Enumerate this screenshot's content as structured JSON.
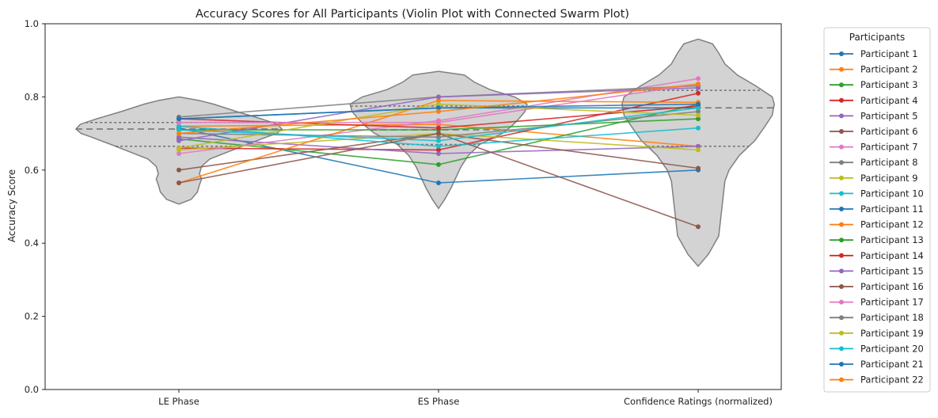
{
  "chart_data": {
    "type": "line",
    "title": "Accuracy Scores for All Participants (Violin Plot with Connected Swarm Plot)",
    "xlabel": "",
    "ylabel": "Accuracy Score",
    "categories": [
      "LE Phase",
      "ES Phase",
      "Confidence Ratings (normalized)"
    ],
    "ylim": [
      0,
      1.0
    ],
    "yticks": [
      "0.0",
      "0.2",
      "0.4",
      "0.6",
      "0.8",
      "1.0"
    ],
    "grid": false,
    "legend": {
      "title": "Participants",
      "placement": "outside-right"
    },
    "palette": [
      "#1f77b4",
      "#ff7f0e",
      "#2ca02c",
      "#d62728",
      "#9467bd",
      "#8c564b",
      "#e377c2",
      "#7f7f7f",
      "#bcbd22",
      "#17becf"
    ],
    "violin_color": "#d3d3d3",
    "violin_edge": "#808080",
    "violins": [
      {
        "category": "LE Phase",
        "profile": [
          [
            0.507,
            0.0
          ],
          [
            0.52,
            0.12
          ],
          [
            0.54,
            0.18
          ],
          [
            0.56,
            0.2
          ],
          [
            0.575,
            0.22
          ],
          [
            0.59,
            0.2
          ],
          [
            0.61,
            0.22
          ],
          [
            0.63,
            0.3
          ],
          [
            0.65,
            0.48
          ],
          [
            0.67,
            0.66
          ],
          [
            0.69,
            0.85
          ],
          [
            0.7,
            0.95
          ],
          [
            0.712,
            1.0
          ],
          [
            0.725,
            0.96
          ],
          [
            0.74,
            0.8
          ],
          [
            0.76,
            0.56
          ],
          [
            0.78,
            0.34
          ],
          [
            0.79,
            0.2
          ],
          [
            0.8,
            0.0
          ]
        ],
        "quartiles": [
          0.665,
          0.712,
          0.73
        ]
      },
      {
        "category": "ES Phase",
        "profile": [
          [
            0.495,
            0.0
          ],
          [
            0.52,
            0.06
          ],
          [
            0.55,
            0.12
          ],
          [
            0.58,
            0.17
          ],
          [
            0.61,
            0.22
          ],
          [
            0.64,
            0.29
          ],
          [
            0.67,
            0.4
          ],
          [
            0.7,
            0.62
          ],
          [
            0.72,
            0.71
          ],
          [
            0.74,
            0.78
          ],
          [
            0.76,
            0.84
          ],
          [
            0.78,
            0.86
          ],
          [
            0.8,
            0.74
          ],
          [
            0.82,
            0.5
          ],
          [
            0.84,
            0.35
          ],
          [
            0.86,
            0.25
          ],
          [
            0.87,
            0.0
          ]
        ],
        "quartiles": [
          0.67,
          0.71,
          0.775
        ]
      },
      {
        "category": "Confidence Ratings (normalized)",
        "profile": [
          [
            0.337,
            0.0
          ],
          [
            0.37,
            0.1
          ],
          [
            0.42,
            0.2
          ],
          [
            0.47,
            0.22
          ],
          [
            0.52,
            0.24
          ],
          [
            0.57,
            0.26
          ],
          [
            0.6,
            0.3
          ],
          [
            0.64,
            0.4
          ],
          [
            0.68,
            0.55
          ],
          [
            0.72,
            0.65
          ],
          [
            0.75,
            0.72
          ],
          [
            0.78,
            0.74
          ],
          [
            0.8,
            0.72
          ],
          [
            0.83,
            0.56
          ],
          [
            0.86,
            0.38
          ],
          [
            0.89,
            0.26
          ],
          [
            0.92,
            0.2
          ],
          [
            0.945,
            0.14
          ],
          [
            0.958,
            0.0
          ]
        ],
        "quartiles": [
          0.665,
          0.77,
          0.818
        ]
      }
    ],
    "series": [
      {
        "name": "Participant 1",
        "values": [
          0.715,
          0.565,
          0.6
        ]
      },
      {
        "name": "Participant 2",
        "values": [
          0.72,
          0.725,
          0.665
        ]
      },
      {
        "name": "Participant 3",
        "values": [
          0.685,
          0.615,
          0.78
        ]
      },
      {
        "name": "Participant 4",
        "values": [
          0.66,
          0.655,
          0.81
        ]
      },
      {
        "name": "Participant 5",
        "values": [
          0.69,
          0.645,
          0.665
        ]
      },
      {
        "name": "Participant 6",
        "values": [
          0.6,
          0.7,
          0.605
        ]
      },
      {
        "name": "Participant 7",
        "values": [
          0.645,
          0.735,
          0.85
        ]
      },
      {
        "name": "Participant 8",
        "values": [
          0.745,
          0.8,
          0.83
        ]
      },
      {
        "name": "Participant 9",
        "values": [
          0.655,
          0.7,
          0.655
        ]
      },
      {
        "name": "Participant 10",
        "values": [
          0.72,
          0.665,
          0.715
        ]
      },
      {
        "name": "Participant 11",
        "values": [
          0.74,
          0.77,
          0.77
        ]
      },
      {
        "name": "Participant 12",
        "values": [
          0.565,
          0.79,
          0.785
        ]
      },
      {
        "name": "Participant 13",
        "values": [
          0.71,
          0.71,
          0.74
        ]
      },
      {
        "name": "Participant 14",
        "values": [
          0.74,
          0.715,
          0.775
        ]
      },
      {
        "name": "Participant 15",
        "values": [
          0.68,
          0.8,
          0.825
        ]
      },
      {
        "name": "Participant 16",
        "values": [
          0.565,
          0.7,
          0.445
        ]
      },
      {
        "name": "Participant 17",
        "values": [
          0.73,
          0.73,
          0.835
        ]
      },
      {
        "name": "Participant 18",
        "values": [
          0.7,
          0.69,
          0.76
        ]
      },
      {
        "name": "Participant 19",
        "values": [
          0.66,
          0.78,
          0.75
        ]
      },
      {
        "name": "Participant 20",
        "values": [
          0.71,
          0.68,
          0.77
        ]
      },
      {
        "name": "Participant 21",
        "values": [
          0.74,
          0.77,
          0.78
        ]
      },
      {
        "name": "Participant 22",
        "values": [
          0.7,
          0.76,
          0.835
        ]
      }
    ]
  }
}
